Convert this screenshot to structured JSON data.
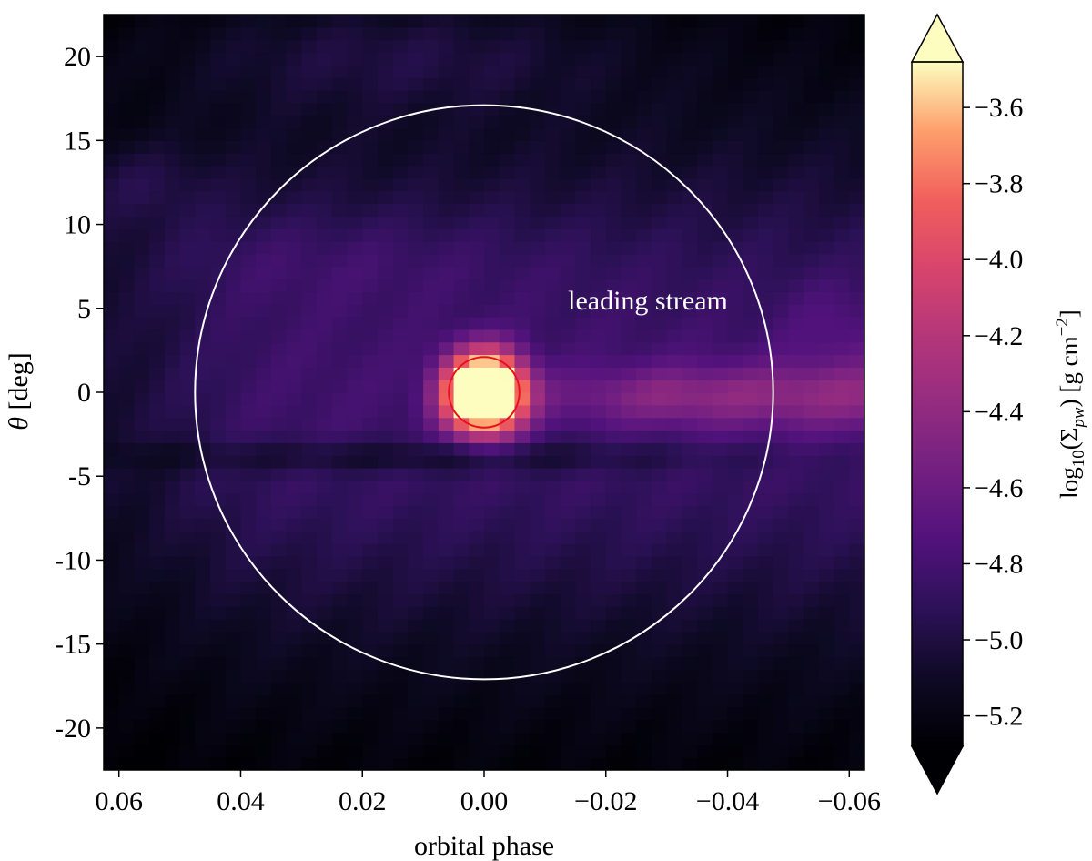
{
  "chart_data": {
    "type": "heatmap",
    "xlabel": "orbital phase",
    "ylabel_symbol": "θ",
    "ylabel_unit": "[deg]",
    "xlim": [
      0.0625,
      -0.0625
    ],
    "ylim": [
      -22.5,
      22.5
    ],
    "x_ticks": [
      0.06,
      0.04,
      0.02,
      0.0,
      -0.02,
      -0.04,
      -0.06
    ],
    "x_tick_labels": [
      "0.06",
      "0.04",
      "0.02",
      "0.00",
      "−0.02",
      "−0.04",
      "−0.06"
    ],
    "y_ticks": [
      20,
      15,
      10,
      5,
      0,
      -5,
      -10,
      -15,
      -20
    ],
    "y_tick_labels": [
      "20",
      "15",
      "10",
      "5",
      "0",
      "-5",
      "-10",
      "-15",
      "-20"
    ],
    "colorbar": {
      "label_main": "log",
      "label_sub": "10",
      "label_arg": "(Σ",
      "label_arg_sub": "pw",
      "label_close": ")",
      "label_units": "[g cm",
      "label_units_sup": "−2",
      "label_units_close": "]",
      "range": [
        -5.28,
        -3.48
      ],
      "extend": "both",
      "ticks": [
        -3.6,
        -3.8,
        -4.0,
        -4.2,
        -4.4,
        -4.6,
        -4.8,
        -5.0,
        -5.2
      ],
      "tick_labels": [
        "−3.6",
        "−3.8",
        "−4.0",
        "−4.2",
        "−4.4",
        "−4.6",
        "−4.8",
        "−5.0",
        "−5.2"
      ],
      "colormap": "magma"
    },
    "annotation": "leading stream",
    "overlays": {
      "large_circle": {
        "x_center": 0.0,
        "y_center": 0.0,
        "x_radius": 0.0475,
        "y_radius": 17.1,
        "color": "#ffffff"
      },
      "small_circle": {
        "x_center": 0.0,
        "y_center": 0.0,
        "x_radius": 0.0058,
        "y_radius": 2.1,
        "color": "#e8111b"
      }
    },
    "grid": {
      "nx": 50,
      "ny": 60
    }
  }
}
